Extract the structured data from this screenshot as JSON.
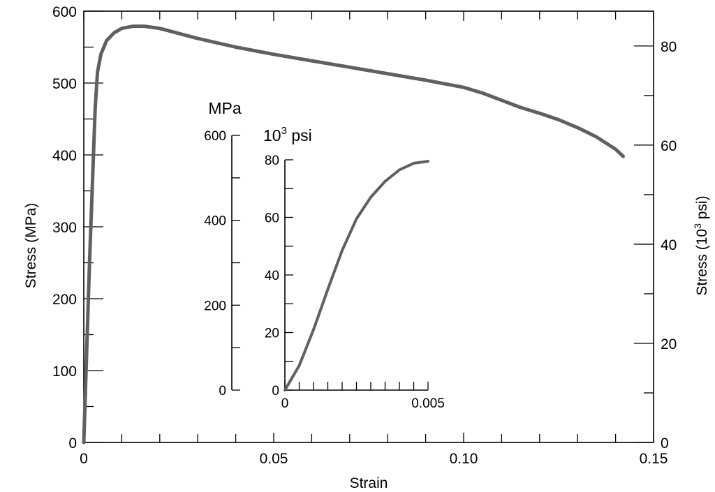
{
  "chart_data": [
    {
      "type": "line",
      "xlabel": "Strain",
      "ylabel": "Stress (MPa)",
      "ylabel_right": "Stress (10",
      "ylabel_right_sup": "3",
      "ylabel_right_tail": " psi)",
      "xlim": [
        0,
        0.15
      ],
      "ylim": [
        0,
        600
      ],
      "ylim_right": [
        0,
        87.02
      ],
      "x_ticks": [
        "0",
        "0.05",
        "0.10",
        "0.15"
      ],
      "y_ticks": [
        "0",
        "100",
        "200",
        "300",
        "400",
        "500",
        "600"
      ],
      "y_ticks_right": [
        "0",
        "20",
        "40",
        "60",
        "80"
      ],
      "color": "#606060",
      "series": [
        {
          "x": [
            0,
            0.0015,
            0.003,
            0.0036,
            0.0045,
            0.006,
            0.008,
            0.01,
            0.013,
            0.016,
            0.02,
            0.025,
            0.03,
            0.04,
            0.05,
            0.06,
            0.07,
            0.08,
            0.09,
            0.1,
            0.105,
            0.11,
            0.115,
            0.12,
            0.125,
            0.13,
            0.135,
            0.14,
            0.142
          ],
          "y": [
            0,
            250,
            465,
            515,
            540,
            559,
            570,
            576,
            579,
            579,
            576,
            569,
            562,
            550,
            540,
            531,
            522,
            513,
            504,
            494,
            486,
            476,
            466,
            458,
            449,
            438,
            425,
            408,
            398
          ]
        }
      ]
    },
    {
      "type": "line",
      "title": "",
      "unit_left": "MPa",
      "unit_right": "10",
      "unit_right_sup": "3",
      "unit_right_tail": " psi",
      "xlim": [
        0,
        0.005
      ],
      "ylim": [
        0,
        600
      ],
      "ylim_right": [
        0,
        80
      ],
      "x_ticks": [
        "0",
        "0.005"
      ],
      "y_ticks": [
        "0",
        "200",
        "400",
        "600"
      ],
      "y_ticks_right": [
        "0",
        "20",
        "40",
        "60",
        "80"
      ],
      "color": "#606060",
      "series": [
        {
          "x": [
            0,
            0.0005,
            0.001,
            0.0015,
            0.002,
            0.0025,
            0.003,
            0.0035,
            0.004,
            0.0045,
            0.005
          ],
          "y": [
            0,
            8.5,
            21,
            35,
            48.5,
            59.5,
            67,
            72.5,
            76.5,
            78.8,
            79.5
          ]
        }
      ]
    }
  ]
}
